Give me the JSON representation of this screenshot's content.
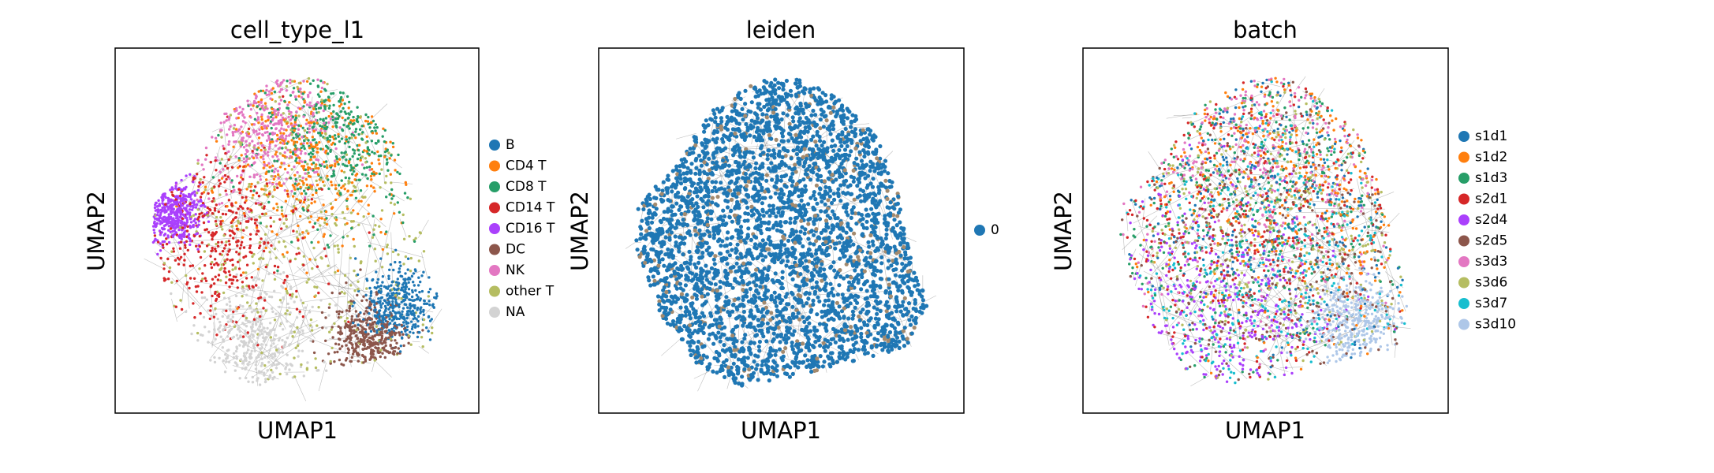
{
  "chart_data": [
    {
      "type": "scatter",
      "title": "cell_type_l1",
      "xlabel": "UMAP1",
      "ylabel": "UMAP2",
      "ticks": "none",
      "legend_placement": "right",
      "legend": [
        {
          "label": "B",
          "color": "#1f77b4"
        },
        {
          "label": "CD4 T",
          "color": "#ff7f0e"
        },
        {
          "label": "CD8 T",
          "color": "#279e68"
        },
        {
          "label": "CD14 T",
          "color": "#d62728"
        },
        {
          "label": "CD16 T",
          "color": "#aa40fc"
        },
        {
          "label": "DC",
          "color": "#8c564b"
        },
        {
          "label": "NK",
          "color": "#e377c2"
        },
        {
          "label": "other T",
          "color": "#b5bd61"
        },
        {
          "label": "NA",
          "color": "#d3d3d3"
        }
      ],
      "edge_color": "#8a8a8a"
    },
    {
      "type": "scatter",
      "title": "leiden",
      "xlabel": "UMAP1",
      "ylabel": "UMAP2",
      "ticks": "none",
      "legend_placement": "right",
      "legend": [
        {
          "label": "0",
          "color": "#1f77b4"
        }
      ],
      "edge_color": "#8a8a8a"
    },
    {
      "type": "scatter",
      "title": "batch",
      "xlabel": "UMAP1",
      "ylabel": "UMAP2",
      "ticks": "none",
      "legend_placement": "right",
      "legend": [
        {
          "label": "s1d1",
          "color": "#1f77b4"
        },
        {
          "label": "s1d2",
          "color": "#ff7f0e"
        },
        {
          "label": "s1d3",
          "color": "#279e68"
        },
        {
          "label": "s2d1",
          "color": "#d62728"
        },
        {
          "label": "s2d4",
          "color": "#aa40fc"
        },
        {
          "label": "s2d5",
          "color": "#8c564b"
        },
        {
          "label": "s3d3",
          "color": "#e377c2"
        },
        {
          "label": "s3d6",
          "color": "#b5bd61"
        },
        {
          "label": "s3d7",
          "color": "#17becf"
        },
        {
          "label": "s3d10",
          "color": "#aec7e8"
        }
      ],
      "edge_color": "#8a8a8a"
    }
  ]
}
